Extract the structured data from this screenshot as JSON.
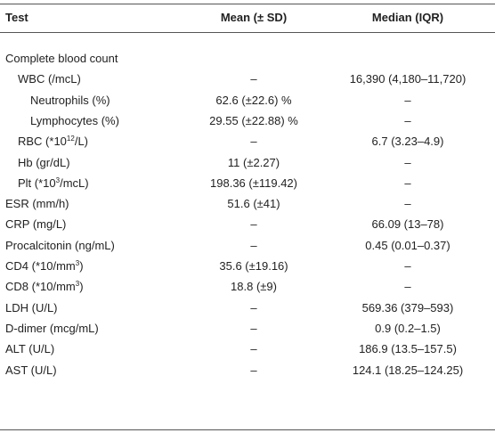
{
  "table": {
    "header": [
      "Test",
      "Mean (± SD)",
      "Median (IQR)"
    ],
    "rows": [
      {
        "test": "Complete blood count",
        "rows": [
          {
            "test": "WBC (/mcL)",
            "mean": "–",
            "median": "16,390 (4,180–11,720)",
            "rows": [
              {
                "test": "Neutrophils (%)",
                "mean": "62.6 (±22.6) %",
                "median": "–"
              },
              {
                "test": "Lymphocytes (%)",
                "mean": "29.55 (±22.88) %",
                "median": "–"
              }
            ]
          },
          {
            "test": [
              "RBC (*10",
              "12",
              "/L)"
            ],
            "mean": "–",
            "median": "6.7 (3.23–4.9)"
          },
          {
            "test": "Hb (gr/dL)",
            "mean": "11 (±2.27)",
            "median": "–"
          },
          {
            "test": [
              "Plt (*10",
              "3",
              "/mcL)"
            ],
            "mean": "198.36 (±119.42)",
            "median": "–"
          }
        ]
      },
      {
        "test": "ESR (mm/h)",
        "mean": "51.6 (±41)",
        "median": "–"
      },
      {
        "test": "CRP (mg/L)",
        "mean": "–",
        "median": "66.09 (13–78)"
      },
      {
        "test": "Procalcitonin (ng/mL)",
        "mean": "–",
        "median": "0.45 (0.01–0.37)"
      },
      {
        "test": [
          "CD4 (*10/mm",
          "3",
          ")"
        ],
        "mean": "35.6 (±19.16)",
        "median": "–"
      },
      {
        "test": [
          "CD8 (*10/mm",
          "3",
          ")"
        ],
        "mean": "18.8 (±9)",
        "median": "–"
      },
      {
        "test": "LDH (U/L)",
        "mean": "–",
        "median": "569.36 (379–593)"
      },
      {
        "test": "D-dimer (mcg/mL)",
        "mean": "–",
        "median": "0.9 (0.2–1.5)"
      },
      {
        "test": "ALT (U/L)",
        "mean": "–",
        "median": "186.9 (13.5–157.5)"
      },
      {
        "test": "AST (U/L)",
        "mean": "–",
        "median": "124.1 (18.25–124.25)"
      }
    ]
  }
}
